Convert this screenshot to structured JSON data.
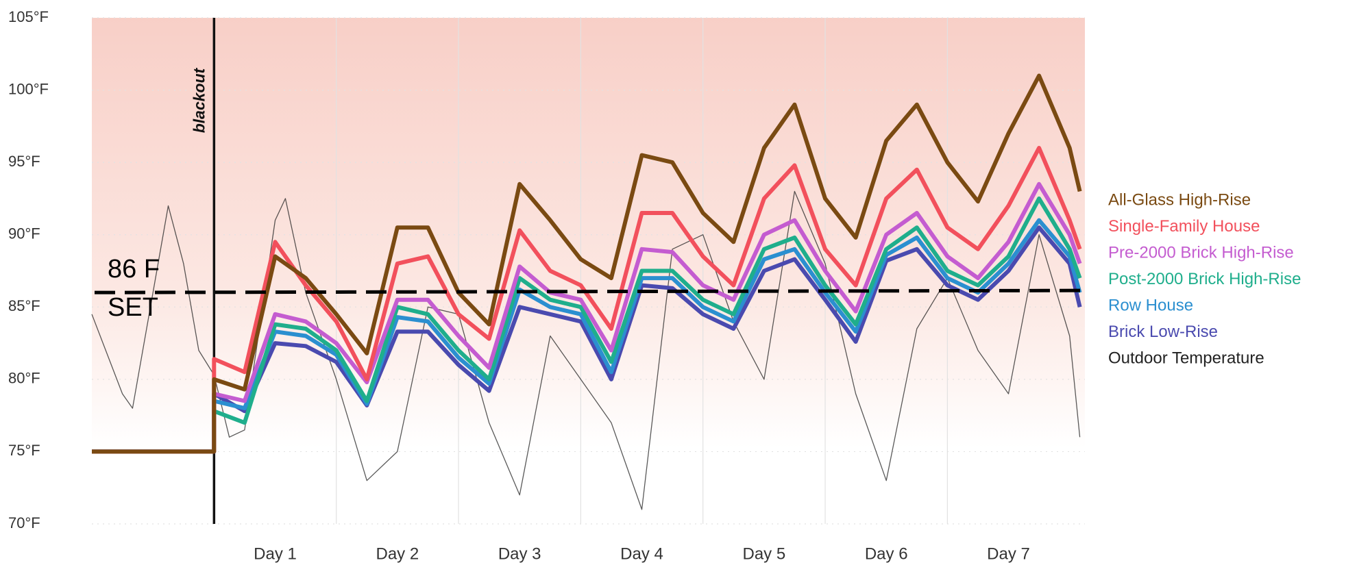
{
  "chart_data": {
    "type": "line",
    "xlim": [
      -24,
      171
    ],
    "ylim": [
      70,
      105
    ],
    "xticks": [
      {
        "value": 12,
        "label": "Day 1"
      },
      {
        "value": 36,
        "label": "Day 2"
      },
      {
        "value": 60,
        "label": "Day 3"
      },
      {
        "value": 84,
        "label": "Day 4"
      },
      {
        "value": 108,
        "label": "Day 5"
      },
      {
        "value": 132,
        "label": "Day 6"
      },
      {
        "value": 156,
        "label": "Day 7"
      }
    ],
    "xgrid": [
      24,
      48,
      72,
      96,
      120,
      144
    ],
    "yticks": [
      {
        "value": 70,
        "label": "70°F"
      },
      {
        "value": 75,
        "label": "75°F"
      },
      {
        "value": 80,
        "label": "80°F"
      },
      {
        "value": 85,
        "label": "85°F"
      },
      {
        "value": 90,
        "label": "90°F"
      },
      {
        "value": 95,
        "label": "95°F"
      },
      {
        "value": 100,
        "label": "100°F"
      },
      {
        "value": 105,
        "label": "105°F"
      }
    ],
    "grid": true,
    "legend": "right",
    "series": [
      {
        "name": "All-Glass High-Rise",
        "color": "#7a4a12",
        "x": [
          -24,
          0,
          0,
          6,
          12,
          18,
          24,
          30,
          36,
          42,
          48,
          54,
          60,
          66,
          72,
          78,
          84,
          90,
          96,
          102,
          108,
          114,
          120,
          126,
          132,
          138,
          144,
          150,
          156,
          162,
          168,
          170
        ],
        "values": [
          75,
          75,
          80,
          79.3,
          88.5,
          87,
          84.5,
          81.8,
          90.5,
          90.5,
          86,
          83.8,
          93.5,
          91,
          88.3,
          87,
          95.5,
          95,
          91.5,
          89.5,
          96,
          99,
          92.5,
          89.8,
          96.5,
          99,
          95,
          92.3,
          97,
          101,
          96,
          93
        ]
      },
      {
        "name": "Single-Family House",
        "color": "#f2505c",
        "x": [
          -24,
          0,
          0,
          6,
          12,
          18,
          24,
          30,
          36,
          42,
          48,
          54,
          60,
          66,
          72,
          78,
          84,
          90,
          96,
          102,
          108,
          114,
          120,
          126,
          132,
          138,
          144,
          150,
          156,
          162,
          168,
          170
        ],
        "values": [
          75,
          75,
          81.4,
          80.5,
          89.5,
          86.5,
          84,
          80,
          88,
          88.5,
          84.5,
          82.8,
          90.3,
          87.5,
          86.5,
          83.5,
          91.5,
          91.5,
          88.5,
          86.5,
          92.5,
          94.8,
          89,
          86.5,
          92.5,
          94.5,
          90.5,
          89,
          92,
          96,
          91,
          89
        ]
      },
      {
        "name": "Pre-2000 Brick High-Rise",
        "color": "#c45cd0",
        "x": [
          -24,
          0,
          0,
          6,
          12,
          18,
          24,
          30,
          36,
          42,
          48,
          54,
          60,
          66,
          72,
          78,
          84,
          90,
          96,
          102,
          108,
          114,
          120,
          126,
          132,
          138,
          144,
          150,
          156,
          162,
          168,
          170
        ],
        "values": [
          75,
          75,
          79,
          78.5,
          84.5,
          84,
          82.5,
          79.8,
          85.5,
          85.5,
          83,
          80.8,
          87.8,
          86,
          85.5,
          82,
          89,
          88.8,
          86.5,
          85.5,
          90,
          91,
          87.5,
          84.7,
          90,
          91.5,
          88.5,
          87,
          89.5,
          93.5,
          90,
          88
        ]
      },
      {
        "name": "Post-2000 Brick High-Rise",
        "color": "#1fae8c",
        "x": [
          -24,
          0,
          0,
          6,
          12,
          18,
          24,
          30,
          36,
          42,
          48,
          54,
          60,
          66,
          72,
          78,
          84,
          90,
          96,
          102,
          108,
          114,
          120,
          126,
          132,
          138,
          144,
          150,
          156,
          162,
          168,
          170
        ],
        "values": [
          75,
          75,
          77.8,
          77,
          83.8,
          83.5,
          82,
          78.5,
          85,
          84.5,
          82,
          80,
          87,
          85.5,
          85,
          81.2,
          87.5,
          87.5,
          85.5,
          84.5,
          89,
          89.8,
          86.5,
          83.8,
          89,
          90.5,
          87.5,
          86.5,
          88.5,
          92.5,
          89,
          87
        ]
      },
      {
        "name": "Row House",
        "color": "#2b8fd0",
        "x": [
          -24,
          0,
          0,
          6,
          12,
          18,
          24,
          30,
          36,
          42,
          48,
          54,
          60,
          66,
          72,
          78,
          84,
          90,
          96,
          102,
          108,
          114,
          120,
          126,
          132,
          138,
          144,
          150,
          156,
          162,
          168,
          170
        ],
        "values": [
          75,
          75,
          78.5,
          78,
          83.3,
          83,
          81.7,
          78.3,
          84.3,
          84,
          81.5,
          79.7,
          86.2,
          85,
          84.5,
          80.5,
          87,
          87,
          85,
          84,
          88.3,
          89,
          86,
          83.3,
          88.6,
          89.8,
          87,
          86,
          88,
          91,
          88.5,
          86
        ]
      },
      {
        "name": "Brick Low-Rise",
        "color": "#4a4aaf",
        "x": [
          -24,
          0,
          0,
          6,
          12,
          18,
          24,
          30,
          36,
          42,
          48,
          54,
          60,
          66,
          72,
          78,
          84,
          90,
          96,
          102,
          108,
          114,
          120,
          126,
          132,
          138,
          144,
          150,
          156,
          162,
          168,
          170
        ],
        "values": [
          75,
          75,
          79,
          77.8,
          82.5,
          82.3,
          81.2,
          78.2,
          83.3,
          83.3,
          81,
          79.2,
          85,
          84.5,
          84,
          80,
          86.5,
          86.3,
          84.5,
          83.5,
          87.5,
          88.3,
          85.5,
          82.6,
          88.2,
          89,
          86.5,
          85.5,
          87.5,
          90.5,
          88,
          85
        ]
      },
      {
        "name": "Outdoor Temperature",
        "color": "#222222",
        "x": [
          -24,
          -18,
          -16,
          -12,
          -9,
          -6,
          -3,
          0,
          3,
          6,
          12,
          14,
          18,
          24,
          30,
          36,
          42,
          48,
          54,
          60,
          66,
          72,
          78,
          84,
          90,
          96,
          102,
          108,
          114,
          120,
          126,
          132,
          138,
          144,
          150,
          156,
          162,
          168,
          170
        ],
        "values": [
          84.5,
          79,
          78,
          86,
          92,
          88,
          82,
          80.3,
          76,
          76.5,
          91,
          92.5,
          86,
          80,
          73,
          75,
          85,
          84.5,
          77,
          72,
          83,
          80,
          77,
          71,
          89,
          90,
          84,
          80,
          93,
          88,
          79,
          73,
          83.5,
          87,
          82,
          79,
          90,
          83,
          76
        ]
      }
    ],
    "reference_line": {
      "value": 86,
      "labels": [
        "86 F",
        "SET"
      ]
    },
    "annotations": [
      {
        "text": "blackout",
        "x": 0
      }
    ]
  }
}
